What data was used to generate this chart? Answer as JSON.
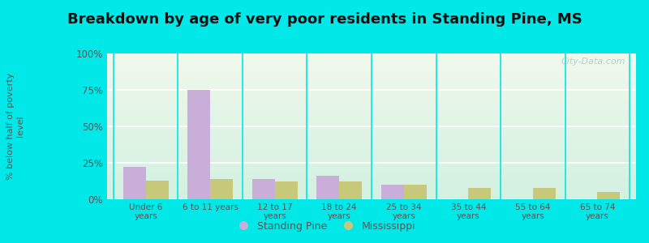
{
  "title": "Breakdown by age of very poor residents in Standing Pine, MS",
  "ylabel": "% below half of poverty\nlevel",
  "categories": [
    "Under 6\nyears",
    "6 to 11 years",
    "12 to 17\nyears",
    "18 to 24\nyears",
    "25 to 34\nyears",
    "35 to 44\nyears",
    "55 to 64\nyears",
    "65 to 74\nyears"
  ],
  "standing_pine": [
    22,
    75,
    14,
    16,
    10,
    0,
    0,
    0
  ],
  "mississippi": [
    13,
    14,
    12,
    12,
    10,
    8,
    8,
    5
  ],
  "bar_color_pine": "#c9aed9",
  "bar_color_ms": "#c8c87a",
  "ylim": [
    0,
    100
  ],
  "yticks": [
    0,
    25,
    50,
    75,
    100
  ],
  "ytick_labels": [
    "0%",
    "25%",
    "50%",
    "75%",
    "100%"
  ],
  "outer_bg": "#00e8e8",
  "watermark": "City-Data.com",
  "legend_pine": "Standing Pine",
  "legend_ms": "Mississippi",
  "title_fontsize": 13,
  "bar_width": 0.35
}
